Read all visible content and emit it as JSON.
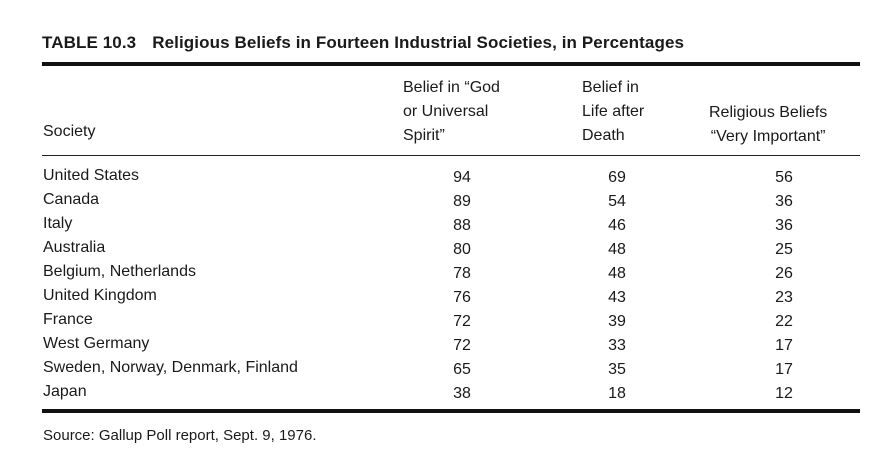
{
  "table": {
    "number": "TABLE 10.3",
    "title": "Religious Beliefs in Fourteen Industrial Societies, in Percentages",
    "headers": {
      "society": "Society",
      "col1": [
        "Belief in “God",
        "or Universal",
        "Spirit”"
      ],
      "col2": [
        "Belief in",
        "Life after",
        "Death"
      ],
      "col3": [
        "Religious Beliefs",
        "“Very Important”"
      ]
    },
    "rows": [
      {
        "society": "United States",
        "god": "94",
        "afterlife": "69",
        "important": "56"
      },
      {
        "society": "Canada",
        "god": "89",
        "afterlife": "54",
        "important": "36"
      },
      {
        "society": "Italy",
        "god": "88",
        "afterlife": "46",
        "important": "36"
      },
      {
        "society": "Australia",
        "god": "80",
        "afterlife": "48",
        "important": "25"
      },
      {
        "society": "Belgium, Netherlands",
        "god": "78",
        "afterlife": "48",
        "important": "26"
      },
      {
        "society": "United Kingdom",
        "god": "76",
        "afterlife": "43",
        "important": "23"
      },
      {
        "society": "France",
        "god": "72",
        "afterlife": "39",
        "important": "22"
      },
      {
        "society": "West Germany",
        "god": "72",
        "afterlife": "33",
        "important": "17"
      },
      {
        "society": "Sweden, Norway, Denmark, Finland",
        "god": "65",
        "afterlife": "35",
        "important": "17"
      },
      {
        "society": "Japan",
        "god": "38",
        "afterlife": "18",
        "important": "12"
      }
    ],
    "source": "Source: Gallup Poll report, Sept. 9, 1976."
  }
}
